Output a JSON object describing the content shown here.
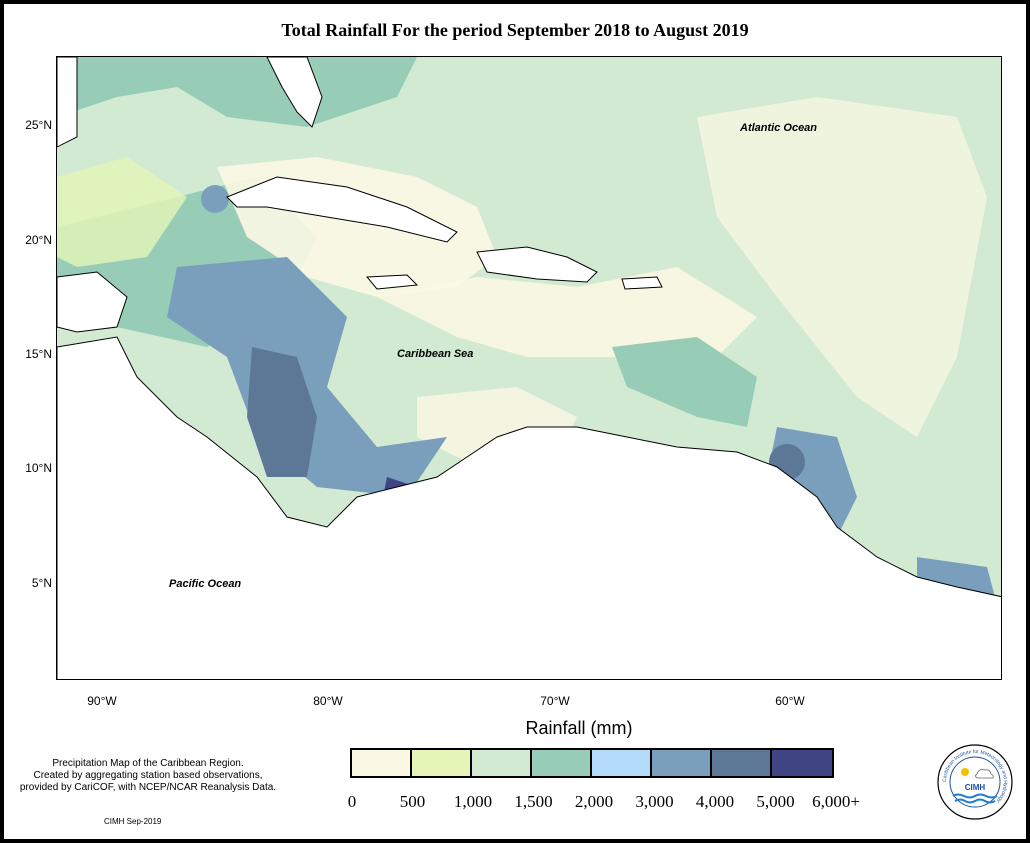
{
  "title": "Total Rainfall For the period September 2018 to August 2019",
  "map": {
    "y_axis_labels": [
      "25°N",
      "20°N",
      "15°N",
      "10°N",
      "5°N"
    ],
    "x_axis_labels": [
      "90°W",
      "80°W",
      "70°W",
      "60°W"
    ],
    "ocean_labels": {
      "atlantic": "Atlantic Ocean",
      "caribbean": "Caribbean Sea",
      "pacific": "Pacific Ocean"
    }
  },
  "legend": {
    "title": "Rainfall (mm)",
    "bins": [
      {
        "color": "#fbf8e4"
      },
      {
        "color": "#e5f5b7"
      },
      {
        "color": "#d3ead2"
      },
      {
        "color": "#97cdb7"
      },
      {
        "color": "#b2dbf9"
      },
      {
        "color": "#7a9fbd"
      },
      {
        "color": "#5c7896"
      },
      {
        "color": "#3e4582"
      }
    ],
    "tick_labels": [
      "0",
      "500",
      "1,000",
      "1,500",
      "2,000",
      "3,000",
      "4,000",
      "5,000",
      "6,000+"
    ]
  },
  "source_note": [
    "Precipitation Map of the Caribbean Region.",
    "Created by aggregating station based observations,",
    "provided by CariCOF, with NCEP/NCAR Reanalysis Data."
  ],
  "credit": "CIMH Sep-2019",
  "logo": {
    "text": "CIMH",
    "ring_text": "Caribbean Institute for Meteorology and Hydrology"
  }
}
